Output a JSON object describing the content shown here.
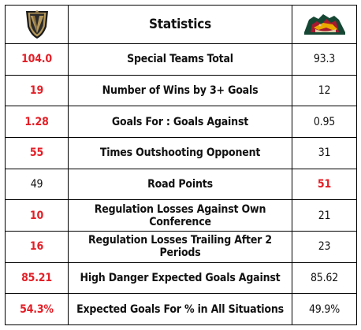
{
  "header": {
    "title": "Statistics",
    "left_team_logo": "vegas-golden-knights-logo",
    "right_team_logo": "minnesota-wild-logo"
  },
  "colors": {
    "highlight": "#e41e26",
    "text": "#111111",
    "border": "#000000"
  },
  "rows": [
    {
      "label": "Special Teams Total",
      "left": "104.0",
      "right": "93.3",
      "better": "left"
    },
    {
      "label": "Number of Wins by 3+ Goals",
      "left": "19",
      "right": "12",
      "better": "left"
    },
    {
      "label": "Goals For : Goals Against",
      "left": "1.28",
      "right": "0.95",
      "better": "left"
    },
    {
      "label": "Times Outshooting Opponent",
      "left": "55",
      "right": "31",
      "better": "left"
    },
    {
      "label": "Road Points",
      "left": "49",
      "right": "51",
      "better": "right"
    },
    {
      "label": "Regulation Losses Against Own Conference",
      "left": "10",
      "right": "21",
      "better": "left"
    },
    {
      "label": "Regulation Losses Trailing After 2 Periods",
      "left": "16",
      "right": "23",
      "better": "left"
    },
    {
      "label": "High Danger Expected Goals Against",
      "left": "85.21",
      "right": "85.62",
      "better": "left"
    },
    {
      "label": "Expected Goals For % in All Situations",
      "left": "54.3%",
      "right": "49.9%",
      "better": "left"
    }
  ]
}
